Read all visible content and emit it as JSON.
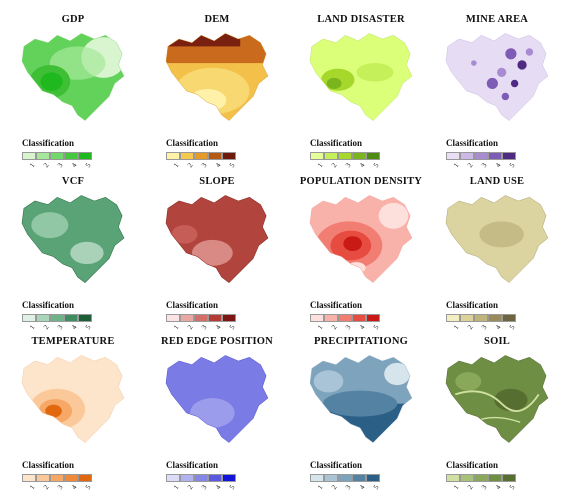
{
  "classification_label": "Classification",
  "panels": [
    {
      "title": "GDP",
      "legend": [
        "#d8f5d0",
        "#a6e89a",
        "#73d96a",
        "#45c93e",
        "#1fb81f"
      ],
      "ticks": [
        "1",
        "2",
        "3",
        "4",
        "5"
      ]
    },
    {
      "title": "DEM",
      "legend": [
        "#fff1a8",
        "#f5c84e",
        "#e59a2a",
        "#b55a14",
        "#6e1a0a"
      ],
      "ticks": [
        "1",
        "2",
        "3",
        "4",
        "5"
      ]
    },
    {
      "title": "LAND DISASTER",
      "legend": [
        "#e4ff9a",
        "#c6f05a",
        "#a6d82c",
        "#7ab51e",
        "#4f8a14"
      ],
      "ticks": [
        "1",
        "2",
        "3",
        "4",
        "5"
      ]
    },
    {
      "title": "MINE AREA",
      "legend": [
        "#e9dff5",
        "#cdb9e6",
        "#a98bd2",
        "#7e5bb4",
        "#4e2a82"
      ],
      "ticks": [
        "1",
        "2",
        "3",
        "4",
        "5"
      ]
    },
    {
      "title": "VCF",
      "legend": [
        "#dff1e6",
        "#a9d6b8",
        "#6fb489",
        "#3f8d5f",
        "#1c5e37"
      ],
      "ticks": [
        "1",
        "2",
        "3",
        "4",
        "5"
      ]
    },
    {
      "title": "SLOPE",
      "legend": [
        "#fbe3e3",
        "#eaa8a4",
        "#d46e68",
        "#b53c35",
        "#7d1512"
      ],
      "ticks": [
        "1",
        "2",
        "3",
        "4",
        "5"
      ]
    },
    {
      "title": "POPULATION DENSITY",
      "legend": [
        "#fde0dc",
        "#f9b2aa",
        "#f27d72",
        "#e74c40",
        "#c91a15"
      ],
      "ticks": [
        "1",
        "2",
        "3",
        "4",
        "5"
      ]
    },
    {
      "title": "LAND USE",
      "legend": [
        "#f4efc2",
        "#ddd39a",
        "#bfb47a",
        "#9a8c5a",
        "#6f6440"
      ],
      "ticks": [
        "1",
        "2",
        "3",
        "4",
        "5"
      ]
    },
    {
      "title": "TEMPERATURE",
      "legend": [
        "#fde5cc",
        "#fbc999",
        "#f7a766",
        "#f08a3a",
        "#e2680f"
      ],
      "ticks": [
        "1",
        "2",
        "3",
        "4",
        "5"
      ]
    },
    {
      "title": "RED EDGE POSITION",
      "legend": [
        "#dcdcf8",
        "#b2b2f0",
        "#8686e6",
        "#5a5ae0",
        "#1414d8"
      ],
      "ticks": [
        "1",
        "2",
        "3",
        "4",
        "5"
      ]
    },
    {
      "title": "PRECIPITATIONG",
      "legend": [
        "#d6e4ec",
        "#a9c4d6",
        "#7ea3bd",
        "#5482a3",
        "#2b5f86"
      ],
      "ticks": [
        "1",
        "2",
        "3",
        "4",
        "5"
      ]
    },
    {
      "title": "SOIL",
      "legend": [
        "#cfe0a0",
        "#a9c27a",
        "#8aa85a",
        "#6e8e44",
        "#566f30"
      ],
      "ticks": [
        "1",
        "2",
        "3",
        "4",
        "5"
      ]
    }
  ]
}
